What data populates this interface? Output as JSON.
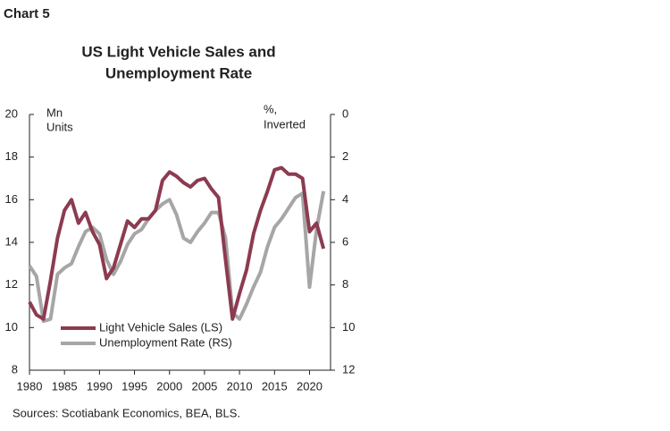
{
  "header": "Chart 5",
  "chart_data": {
    "type": "line",
    "title": [
      "US Light Vehicle Sales and",
      "Unemployment Rate"
    ],
    "y_label": [
      "Mn",
      "Units"
    ],
    "y2_label": [
      "%,",
      "Inverted"
    ],
    "x": [
      1980,
      1981,
      1982,
      1983,
      1984,
      1985,
      1986,
      1987,
      1988,
      1989,
      1990,
      1991,
      1992,
      1993,
      1994,
      1995,
      1996,
      1997,
      1998,
      1999,
      2000,
      2001,
      2002,
      2003,
      2004,
      2005,
      2006,
      2007,
      2008,
      2009,
      2010,
      2011,
      2012,
      2013,
      2014,
      2015,
      2016,
      2017,
      2018,
      2019,
      2020,
      2021,
      2022
    ],
    "series": [
      {
        "name": "Light Vehicle Sales (LS)",
        "color": "#8c3b50",
        "axis": "y",
        "values": [
          11.2,
          10.6,
          10.4,
          12.2,
          14.2,
          15.5,
          16.0,
          14.9,
          15.4,
          14.5,
          13.9,
          12.3,
          12.8,
          13.9,
          15.0,
          14.7,
          15.1,
          15.1,
          15.5,
          16.9,
          17.3,
          17.1,
          16.8,
          16.6,
          16.9,
          17.0,
          16.5,
          16.1,
          13.2,
          10.4,
          11.6,
          12.7,
          14.4,
          15.5,
          16.4,
          17.4,
          17.5,
          17.2,
          17.2,
          17.0,
          14.5,
          14.9,
          13.7
        ]
      },
      {
        "name": "Unemployment Rate (RS)",
        "color": "#a6a6a6",
        "axis": "y2",
        "values": [
          7.1,
          7.6,
          9.7,
          9.6,
          7.5,
          7.2,
          7.0,
          6.2,
          5.5,
          5.3,
          5.6,
          6.8,
          7.5,
          6.9,
          6.1,
          5.6,
          5.4,
          4.9,
          4.5,
          4.2,
          4.0,
          4.7,
          5.8,
          6.0,
          5.5,
          5.1,
          4.6,
          4.6,
          5.8,
          9.3,
          9.6,
          8.9,
          8.1,
          7.4,
          6.2,
          5.3,
          4.9,
          4.4,
          3.9,
          3.7,
          8.1,
          5.4,
          3.6
        ]
      }
    ],
    "xlim": [
      1980,
      2023
    ],
    "xticks": [
      1980,
      1985,
      1990,
      1995,
      2000,
      2005,
      2010,
      2015,
      2020
    ],
    "ylim": [
      8,
      20
    ],
    "yticks": [
      8,
      10,
      12,
      14,
      16,
      18,
      20
    ],
    "y2lim": [
      0,
      12
    ],
    "y2ticks": [
      0,
      2,
      4,
      6,
      8,
      10,
      12
    ],
    "y2_inverted": true,
    "source": "Sources: Scotiabank Economics, BEA, BLS."
  }
}
